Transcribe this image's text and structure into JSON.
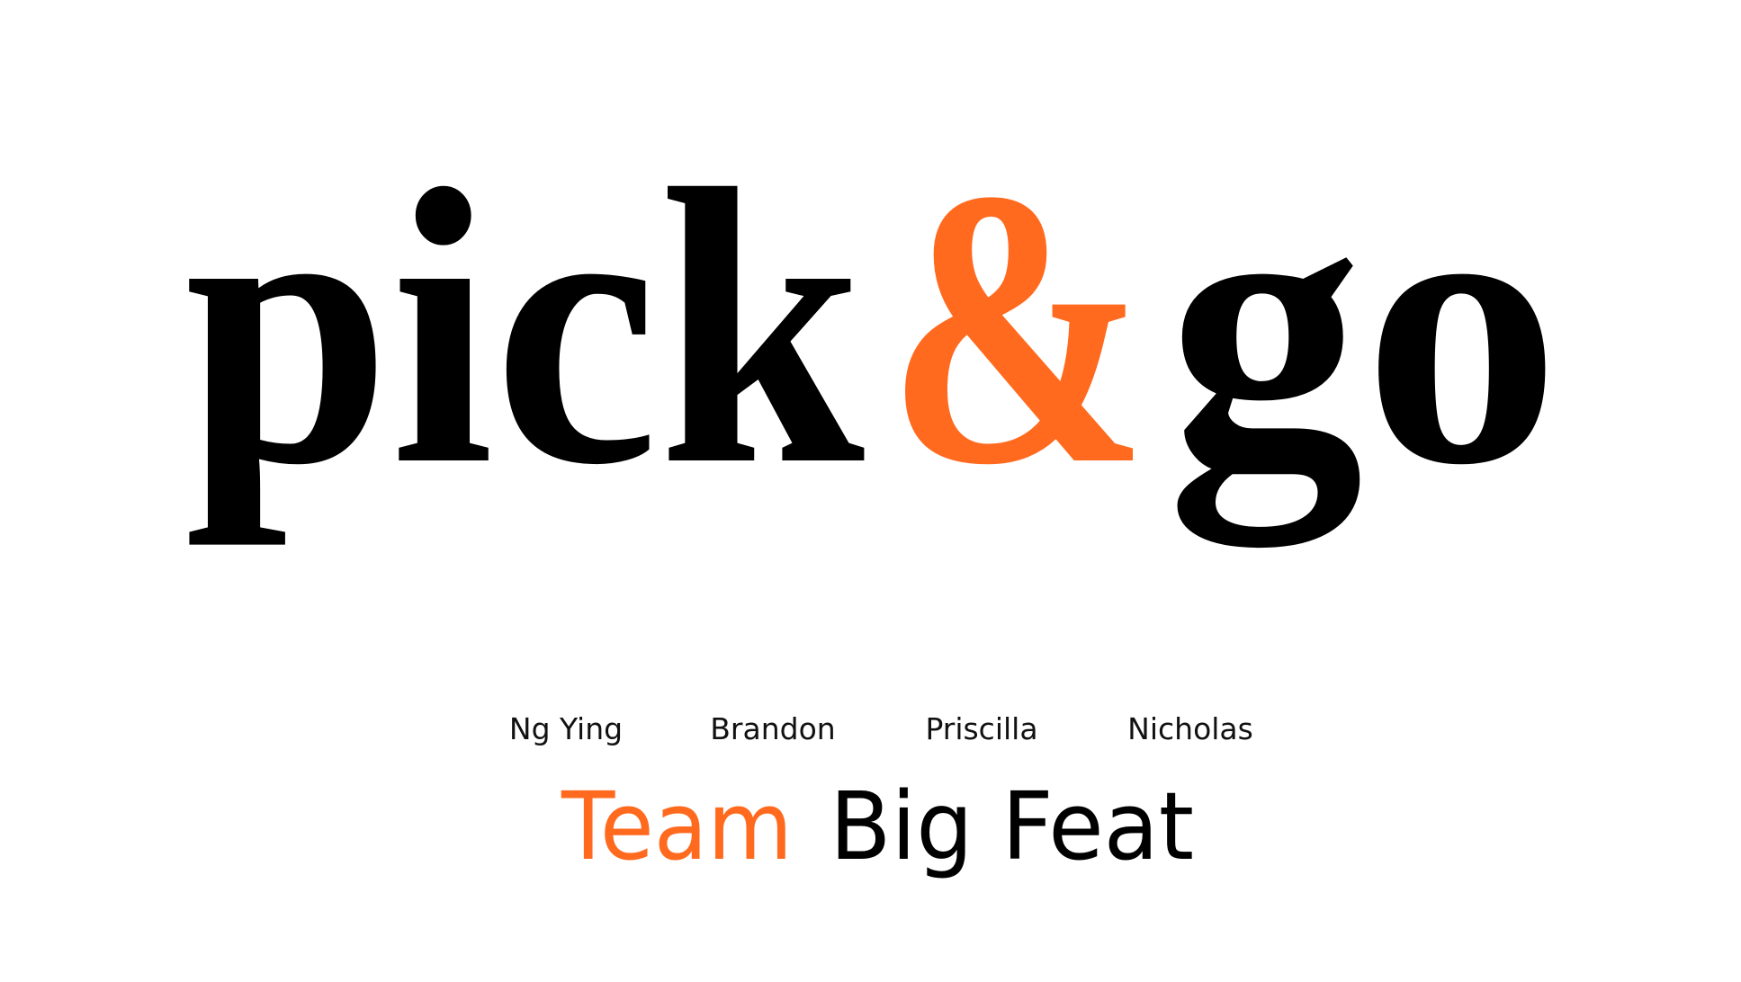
{
  "logo": {
    "word1": "pick",
    "ampersand": "&",
    "word2": "go"
  },
  "members": [
    "Ng Ying",
    "Brandon",
    "Priscilla",
    "Nicholas"
  ],
  "team": {
    "prefix": "Team",
    "name": "Big Feat"
  }
}
